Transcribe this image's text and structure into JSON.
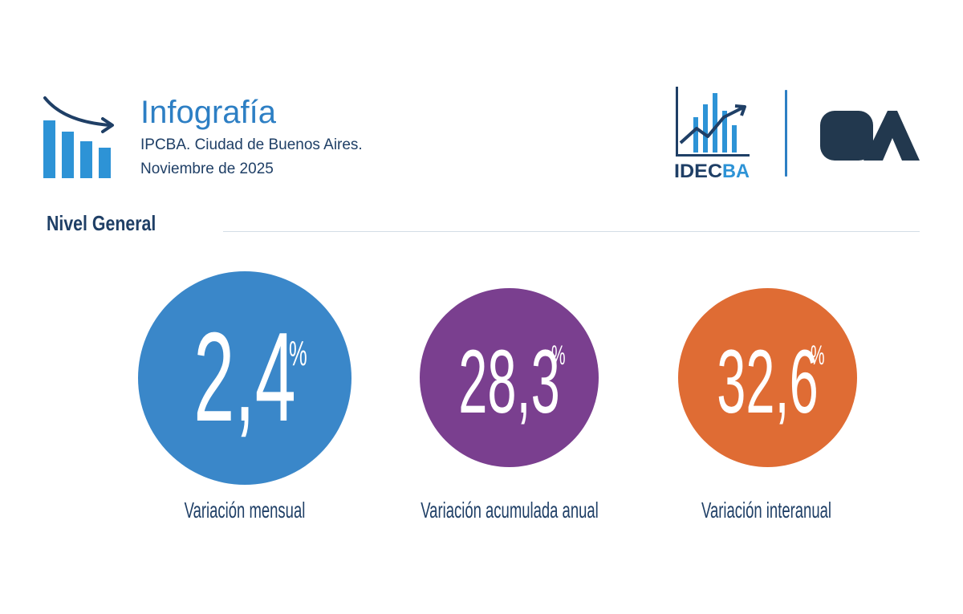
{
  "header": {
    "title": "Infografía",
    "subtitle_line1": "IPCBA. Ciudad de Buenos Aires.",
    "subtitle_line2": "Noviembre de 2025",
    "icon": "descending-bar-chart-icon"
  },
  "logos": {
    "idecba": "IDECBA",
    "ba": "BA"
  },
  "section": {
    "title": "Nivel General"
  },
  "indicators": [
    {
      "value": "2,4",
      "unit": "%",
      "label": "Variación mensual",
      "color": "#3a87c9"
    },
    {
      "value": "28,3",
      "unit": "%",
      "label": "Variación acumulada anual",
      "color": "#7a3f8f"
    },
    {
      "value": "32,6",
      "unit": "%",
      "label": "Variación interanual",
      "color": "#df6c34"
    }
  ],
  "colors": {
    "primary_blue": "#2d7fc4",
    "dark_navy": "#1f3f66",
    "ba_logo": "#22384e"
  }
}
